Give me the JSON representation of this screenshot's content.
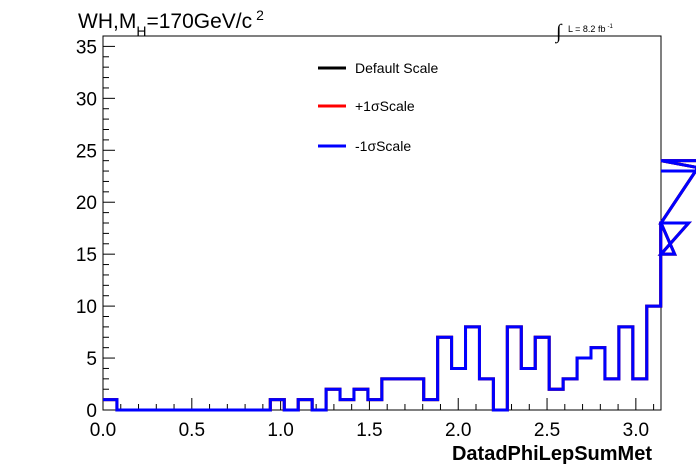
{
  "chart_data": {
    "type": "line",
    "title_main": "WH,M",
    "title_sub": "H",
    "title_rest": "=170GeV/c",
    "title_sup": "2",
    "lumi_integral": "∫",
    "lumi_text": "L = 8.2 fb",
    "lumi_sup": "-1",
    "xlabel": "DatadPhiLepSumMet",
    "ylabel": "",
    "xlim": [
      0,
      3.1416
    ],
    "ylim": [
      0,
      36
    ],
    "x_ticks": [
      "0.0",
      "0.5",
      "1.0",
      "1.5",
      "2.0",
      "2.5",
      "3.0"
    ],
    "y_ticks": [
      "0",
      "5",
      "10",
      "15",
      "20",
      "25",
      "30",
      "35"
    ],
    "bin_width": 0.0785,
    "bin_edges_start": 0,
    "series": [
      {
        "name": "Default Scale",
        "color": "#000000",
        "values": [
          1,
          0,
          0,
          0,
          0,
          0,
          0,
          0,
          0,
          0,
          0,
          0,
          1,
          0,
          1,
          0,
          2,
          1,
          2,
          1,
          3,
          3,
          3,
          1,
          7,
          4,
          8,
          3,
          0,
          8,
          4,
          7,
          2,
          3,
          5,
          6,
          3,
          8,
          3,
          10,
          18,
          15,
          18,
          24,
          23
        ]
      },
      {
        "name": "+1σScale",
        "color": "#ff0000",
        "values": [
          1,
          0,
          0,
          0,
          0,
          0,
          0,
          0,
          0,
          0,
          0,
          0,
          1,
          0,
          1,
          0,
          2,
          1,
          2,
          1,
          3,
          3,
          3,
          1,
          7,
          4,
          8,
          3,
          0,
          8,
          4,
          7,
          2,
          3,
          5,
          6,
          3,
          8,
          3,
          10,
          18,
          15,
          18,
          24,
          23
        ]
      },
      {
        "name": "-1σScale",
        "color": "#0000ff",
        "values": [
          1,
          0,
          0,
          0,
          0,
          0,
          0,
          0,
          0,
          0,
          0,
          0,
          1,
          0,
          1,
          0,
          2,
          1,
          2,
          1,
          3,
          3,
          3,
          1,
          7,
          4,
          8,
          3,
          0,
          8,
          4,
          7,
          2,
          3,
          5,
          6,
          3,
          8,
          3,
          10,
          18,
          15,
          18,
          24,
          23
        ]
      }
    ],
    "legend_placement": "top-center",
    "grid": false
  }
}
